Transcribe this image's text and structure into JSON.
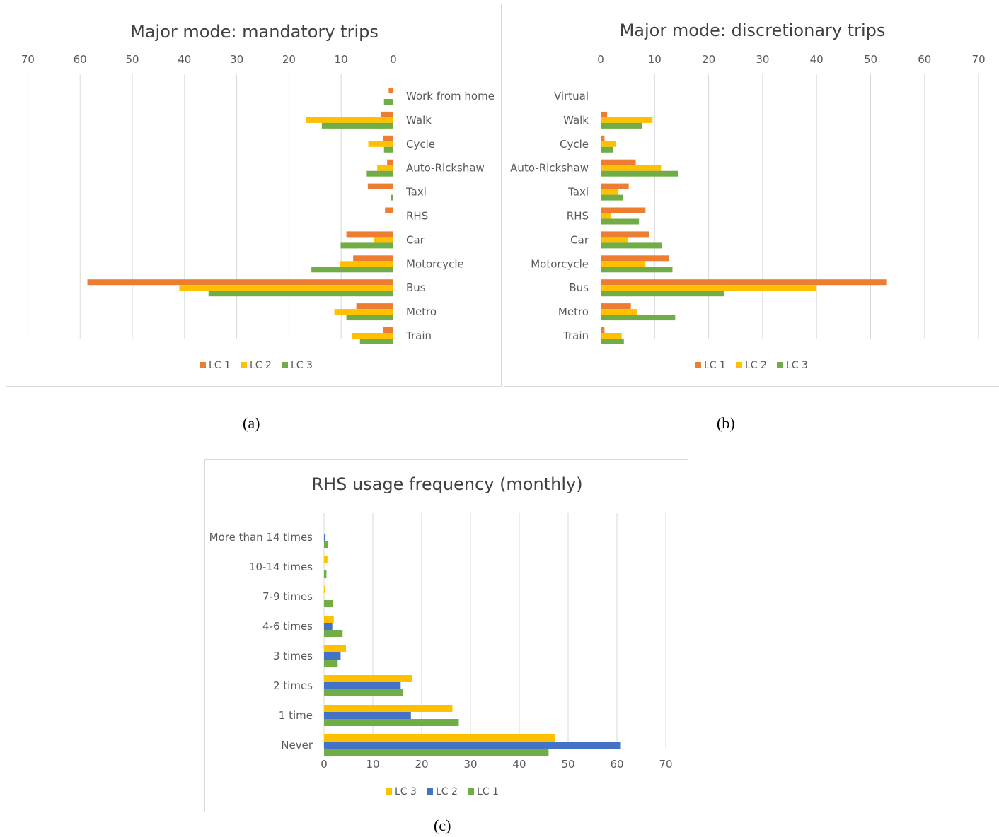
{
  "colors": {
    "grid": "#d9d9d9",
    "text": "#595959",
    "title": "#404040"
  },
  "panels": [
    {
      "id": "a",
      "label": "(a)"
    },
    {
      "id": "b",
      "label": "(b)"
    },
    {
      "id": "c",
      "label": "(c)"
    }
  ],
  "chart_data": [
    {
      "type": "bar",
      "orientation": "horizontal",
      "x_reversed": true,
      "title": "Major mode: mandatory trips",
      "xlabel": "",
      "ylabel": "",
      "xlim": [
        0,
        70
      ],
      "xticks": [
        "70",
        "60",
        "50",
        "40",
        "30",
        "20",
        "10",
        "0"
      ],
      "grid": true,
      "legend": "bottom",
      "categories": [
        "Work from home",
        "Walk",
        "Cycle",
        "Auto-Rickshaw",
        "Taxi",
        "RHS",
        "Car",
        "Motorcycle",
        "Bus",
        "Metro",
        "Train"
      ],
      "series": [
        {
          "name": "LC 1",
          "color": "#ed7d31",
          "values": [
            0.9,
            2.3,
            2.0,
            1.2,
            4.9,
            1.6,
            9.0,
            7.7,
            58.6,
            7.1,
            2.0
          ]
        },
        {
          "name": "LC 2",
          "color": "#ffc000",
          "values": [
            0,
            16.7,
            4.8,
            3.1,
            0,
            0,
            3.8,
            10.3,
            41.0,
            11.3,
            8.0
          ]
        },
        {
          "name": "LC 3",
          "color": "#70ad47",
          "values": [
            1.8,
            13.7,
            1.8,
            5.1,
            0.5,
            0,
            10.1,
            15.7,
            35.4,
            9.0,
            6.4
          ]
        }
      ]
    },
    {
      "type": "bar",
      "orientation": "horizontal",
      "title": "Major mode: discretionary trips",
      "xlabel": "",
      "ylabel": "",
      "xlim": [
        0,
        70
      ],
      "xticks": [
        "0",
        "10",
        "20",
        "30",
        "40",
        "50",
        "60",
        "70"
      ],
      "grid": true,
      "legend": "bottom",
      "categories": [
        "Virtual",
        "Walk",
        "Cycle",
        "Auto-Rickshaw",
        "Taxi",
        "RHS",
        "Car",
        "Motorcycle",
        "Bus",
        "Metro",
        "Train"
      ],
      "series": [
        {
          "name": "LC 1",
          "color": "#ed7d31",
          "values": [
            0,
            1.2,
            0.7,
            6.5,
            5.2,
            8.3,
            9.0,
            12.6,
            52.9,
            5.6,
            0.7
          ]
        },
        {
          "name": "LC 2",
          "color": "#ffc000",
          "values": [
            0,
            9.6,
            2.8,
            11.2,
            3.3,
            1.9,
            5.0,
            8.3,
            40.0,
            6.8,
            3.9
          ]
        },
        {
          "name": "LC 3",
          "color": "#70ad47",
          "values": [
            0,
            7.6,
            2.3,
            14.3,
            4.2,
            7.1,
            11.4,
            13.3,
            22.9,
            13.8,
            4.3
          ]
        }
      ]
    },
    {
      "type": "bar",
      "orientation": "horizontal",
      "title": "RHS usage frequency (monthly)",
      "xlabel": "",
      "ylabel": "",
      "xlim": [
        0,
        70
      ],
      "xticks": [
        "0",
        "10",
        "20",
        "30",
        "40",
        "50",
        "60",
        "70"
      ],
      "grid": true,
      "legend": "bottom",
      "legend_order": [
        "LC 3",
        "LC 2",
        "LC 1"
      ],
      "categories": [
        "More than 14 times",
        "10-14 times",
        "7-9 times",
        "4-6 times",
        "3 times",
        "2 times",
        "1 time",
        "Never"
      ],
      "series": [
        {
          "name": "LC 3",
          "color": "#ffc000",
          "values": [
            0,
            0.7,
            0.3,
            2.0,
            4.5,
            18.1,
            26.3,
            47.3
          ]
        },
        {
          "name": "LC 2",
          "color": "#4472c4",
          "values": [
            0.3,
            0,
            0,
            1.7,
            3.4,
            15.7,
            17.8,
            60.8
          ]
        },
        {
          "name": "LC 1",
          "color": "#70ad47",
          "values": [
            0.8,
            0.5,
            1.8,
            3.8,
            2.8,
            16.1,
            27.6,
            46.0
          ]
        }
      ]
    }
  ]
}
